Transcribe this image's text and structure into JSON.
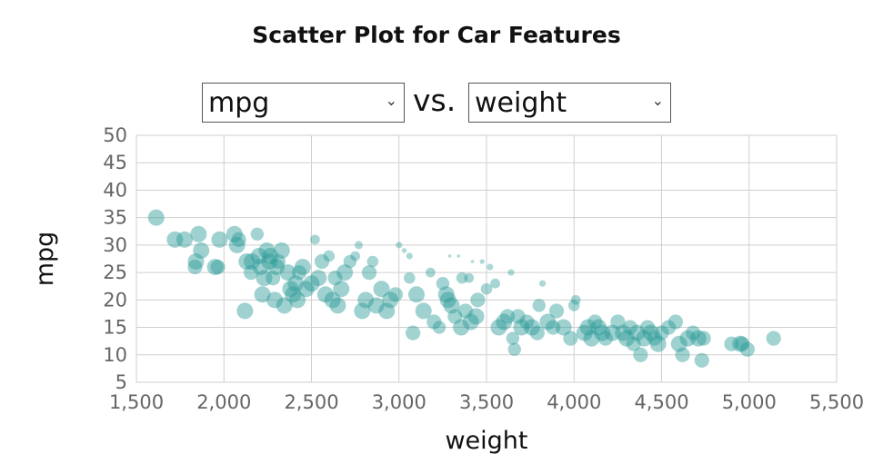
{
  "title": "Scatter Plot for Car Features",
  "controls": {
    "y_select": "mpg",
    "x_select": "weight",
    "vs": "vs."
  },
  "colors": {
    "point": "#2a9a96",
    "grid": "#cfcfcf",
    "tick": "#666666"
  },
  "chart_data": {
    "type": "scatter",
    "xlabel": "weight",
    "ylabel": "mpg",
    "xlim": [
      1500,
      5500
    ],
    "ylim": [
      5,
      50
    ],
    "x_ticks": [
      "1,500",
      "2,000",
      "2,500",
      "3,000",
      "3,500",
      "4,000",
      "4,500",
      "5,000",
      "5,500"
    ],
    "y_ticks": [
      "5",
      "10",
      "15",
      "20",
      "25",
      "30",
      "35",
      "40",
      "45",
      "50"
    ],
    "grid": true,
    "points": [
      [
        1613,
        35,
        1.0
      ],
      [
        1720,
        31,
        1.0
      ],
      [
        1775,
        31,
        1.0
      ],
      [
        1835,
        26,
        0.9
      ],
      [
        1840,
        27,
        1.0
      ],
      [
        1855,
        32,
        1.0
      ],
      [
        1870,
        29,
        1.0
      ],
      [
        1950,
        26,
        1.0
      ],
      [
        1965,
        26,
        0.9
      ],
      [
        1975,
        31,
        1.0
      ],
      [
        2060,
        32,
        1.0
      ],
      [
        2075,
        30,
        1.0
      ],
      [
        2085,
        31,
        0.9
      ],
      [
        2130,
        27,
        1.0
      ],
      [
        2120,
        18,
        1.0
      ],
      [
        2155,
        25,
        0.9
      ],
      [
        2160,
        27,
        1.0
      ],
      [
        2190,
        32,
        0.8
      ],
      [
        2200,
        28,
        1.0
      ],
      [
        2210,
        26,
        1.0
      ],
      [
        2220,
        21,
        1.0
      ],
      [
        2230,
        24,
        1.0
      ],
      [
        2245,
        29,
        1.0
      ],
      [
        2260,
        27,
        1.0
      ],
      [
        2265,
        28,
        1.0
      ],
      [
        2280,
        24,
        0.9
      ],
      [
        2290,
        20,
        1.0
      ],
      [
        2300,
        26,
        1.0
      ],
      [
        2310,
        27,
        0.9
      ],
      [
        2330,
        29,
        1.0
      ],
      [
        2345,
        19,
        1.0
      ],
      [
        2365,
        25,
        1.0
      ],
      [
        2380,
        22,
        1.0
      ],
      [
        2395,
        21,
        1.0
      ],
      [
        2410,
        23,
        1.0
      ],
      [
        2420,
        20,
        1.0
      ],
      [
        2430,
        25,
        0.9
      ],
      [
        2450,
        26,
        1.0
      ],
      [
        2470,
        22,
        1.0
      ],
      [
        2500,
        23,
        1.0
      ],
      [
        2520,
        31,
        0.6
      ],
      [
        2540,
        24,
        1.0
      ],
      [
        2560,
        27,
        0.9
      ],
      [
        2580,
        21,
        1.0
      ],
      [
        2600,
        28,
        0.7
      ],
      [
        2620,
        20,
        1.0
      ],
      [
        2635,
        24,
        0.9
      ],
      [
        2650,
        19,
        1.0
      ],
      [
        2670,
        22,
        1.0
      ],
      [
        2690,
        25,
        1.0
      ],
      [
        2720,
        27,
        0.8
      ],
      [
        2750,
        28,
        0.6
      ],
      [
        2770,
        30,
        0.5
      ],
      [
        2790,
        18,
        1.0
      ],
      [
        2810,
        20,
        1.0
      ],
      [
        2830,
        25,
        0.9
      ],
      [
        2850,
        27,
        0.7
      ],
      [
        2870,
        19,
        1.0
      ],
      [
        2900,
        22,
        1.0
      ],
      [
        2930,
        18,
        1.0
      ],
      [
        2950,
        20,
        1.0
      ],
      [
        2980,
        21,
        0.9
      ],
      [
        3000,
        30,
        0.4
      ],
      [
        3030,
        29,
        0.3
      ],
      [
        3060,
        28,
        0.4
      ],
      [
        3060,
        24,
        0.7
      ],
      [
        3080,
        14,
        0.9
      ],
      [
        3100,
        21,
        1.0
      ],
      [
        3140,
        18,
        1.0
      ],
      [
        3180,
        25,
        0.6
      ],
      [
        3200,
        16,
        0.9
      ],
      [
        3230,
        15,
        0.8
      ],
      [
        3250,
        23,
        0.8
      ],
      [
        3270,
        21,
        1.0
      ],
      [
        3280,
        20,
        1.0
      ],
      [
        3290,
        28,
        0.2
      ],
      [
        3300,
        19,
        1.0
      ],
      [
        3320,
        17,
        0.9
      ],
      [
        3340,
        28,
        0.2
      ],
      [
        3355,
        15,
        1.0
      ],
      [
        3360,
        24,
        0.7
      ],
      [
        3380,
        18,
        0.9
      ],
      [
        3400,
        24,
        0.6
      ],
      [
        3410,
        16,
        1.0
      ],
      [
        3420,
        27,
        0.2
      ],
      [
        3440,
        17,
        1.0
      ],
      [
        3450,
        20,
        0.9
      ],
      [
        3475,
        27,
        0.3
      ],
      [
        3500,
        22,
        0.7
      ],
      [
        3520,
        26,
        0.4
      ],
      [
        3550,
        23,
        0.6
      ],
      [
        3570,
        15,
        1.0
      ],
      [
        3600,
        16,
        1.0
      ],
      [
        3620,
        17,
        0.9
      ],
      [
        3640,
        25,
        0.4
      ],
      [
        3650,
        13,
        0.8
      ],
      [
        3660,
        11,
        0.8
      ],
      [
        3680,
        17,
        0.9
      ],
      [
        3700,
        15,
        1.0
      ],
      [
        3730,
        16,
        0.9
      ],
      [
        3760,
        15,
        1.0
      ],
      [
        3790,
        14,
        0.9
      ],
      [
        3800,
        19,
        0.8
      ],
      [
        3820,
        23,
        0.4
      ],
      [
        3850,
        16,
        1.0
      ],
      [
        3880,
        15,
        0.9
      ],
      [
        3900,
        18,
        0.9
      ],
      [
        3940,
        15,
        1.0
      ],
      [
        3980,
        13,
        0.9
      ],
      [
        4000,
        19,
        0.7
      ],
      [
        4010,
        20,
        0.6
      ],
      [
        4060,
        14,
        1.0
      ],
      [
        4080,
        15,
        1.0
      ],
      [
        4100,
        13,
        1.0
      ],
      [
        4120,
        16,
        0.9
      ],
      [
        4140,
        15,
        1.0
      ],
      [
        4160,
        14,
        1.0
      ],
      [
        4180,
        13,
        0.9
      ],
      [
        4220,
        14,
        1.0
      ],
      [
        4250,
        16,
        0.9
      ],
      [
        4280,
        14,
        1.0
      ],
      [
        4300,
        13,
        1.0
      ],
      [
        4320,
        15,
        0.9
      ],
      [
        4340,
        12,
        0.9
      ],
      [
        4360,
        14,
        1.0
      ],
      [
        4380,
        10,
        0.9
      ],
      [
        4400,
        13,
        1.0
      ],
      [
        4420,
        15,
        0.9
      ],
      [
        4440,
        14,
        1.0
      ],
      [
        4460,
        13,
        0.9
      ],
      [
        4480,
        12,
        1.0
      ],
      [
        4500,
        14,
        0.9
      ],
      [
        4540,
        15,
        0.9
      ],
      [
        4580,
        16,
        0.9
      ],
      [
        4600,
        12,
        1.0
      ],
      [
        4620,
        10,
        0.9
      ],
      [
        4650,
        13,
        1.0
      ],
      [
        4680,
        14,
        0.9
      ],
      [
        4710,
        13,
        1.0
      ],
      [
        4730,
        9,
        0.9
      ],
      [
        4740,
        13,
        0.9
      ],
      [
        4900,
        12,
        0.9
      ],
      [
        4950,
        12,
        1.0
      ],
      [
        4960,
        12,
        0.9
      ],
      [
        4990,
        11,
        0.9
      ],
      [
        5140,
        13,
        0.9
      ]
    ]
  }
}
